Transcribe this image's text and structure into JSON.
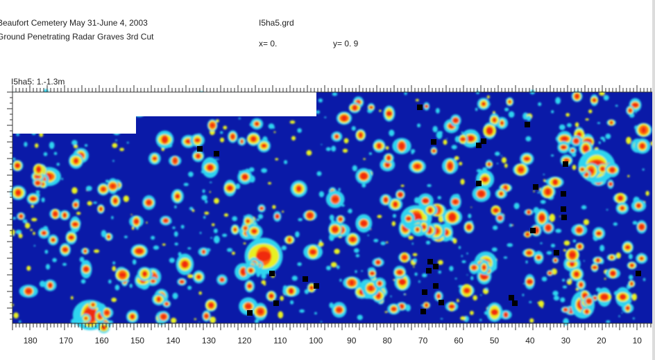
{
  "header": {
    "title_line1": "Beaufort Cemetery May 31-June 4, 2003",
    "title_line2": "Ground Penetrating Radar Graves 3rd Cut",
    "file_name": "I5ha5.grd",
    "x_readout": "x= 0.",
    "y_readout": "y= 0.  9"
  },
  "map": {
    "label": "I5ha5: 1.-1.3m",
    "x_tick_labels": [
      "180",
      "170",
      "160",
      "150",
      "140",
      "130",
      "120",
      "110",
      "100",
      "90",
      "80",
      "70",
      "60",
      "50",
      "40",
      "30",
      "20",
      "10"
    ],
    "x_range": [
      185,
      5
    ],
    "colors": {
      "background": "#0a1aa8",
      "cyan": "#2ed4f0",
      "yellow": "#e8f020",
      "orange": "#ff6a10",
      "red": "#f02a10",
      "black": "#000000",
      "blank": "#ffffff"
    }
  }
}
